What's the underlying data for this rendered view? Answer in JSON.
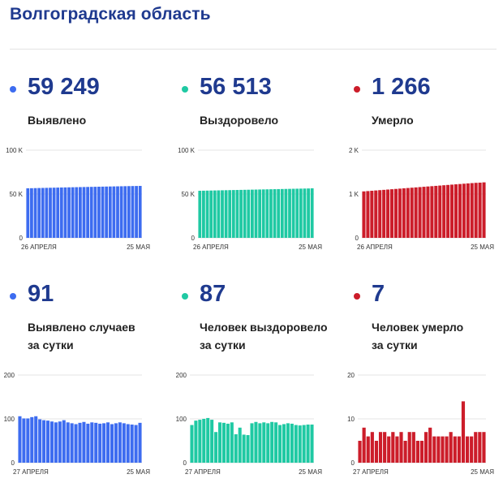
{
  "header": {
    "title": "Волгоградская область"
  },
  "colors": {
    "blue": "#3d6cf0",
    "teal": "#1fc9a3",
    "red": "#cc1d2a",
    "title": "#1f3a8f"
  },
  "stats": [
    {
      "value": "59 249",
      "label1": "Выявлено",
      "label2": ""
    },
    {
      "value": "56 513",
      "label1": "Выздоровело",
      "label2": ""
    },
    {
      "value": "1 266",
      "label1": "Умерло",
      "label2": ""
    },
    {
      "value": "91",
      "label1": "Выявлено случаев",
      "label2": "за сутки"
    },
    {
      "value": "87",
      "label1": "Человек выздоровело",
      "label2": "за сутки"
    },
    {
      "value": "7",
      "label1": "Человек умерло",
      "label2": "за сутки"
    }
  ],
  "chart_data": [
    {
      "type": "bar",
      "color": "#3d6cf0",
      "ylim": [
        0,
        100000
      ],
      "yticks": [
        {
          "v": 0,
          "t": "0"
        },
        {
          "v": 50000,
          "t": "50 K"
        },
        {
          "v": 100000,
          "t": "100 K"
        }
      ],
      "x_start_label": "26 АПРЕЛЯ",
      "x_end_label": "25 МАЯ",
      "values": [
        56527,
        56629,
        56733,
        56838,
        56938,
        57031,
        57128,
        57230,
        57331,
        57440,
        57533,
        57623,
        57719,
        57804,
        57891,
        57977,
        58068,
        58155,
        58248,
        58340,
        58423,
        58510,
        58593,
        58676,
        58754,
        58844,
        58929,
        59012,
        59090,
        59158,
        59249
      ]
    },
    {
      "type": "bar",
      "color": "#1fc9a3",
      "ylim": [
        0,
        100000
      ],
      "yticks": [
        {
          "v": 0,
          "t": "0"
        },
        {
          "v": 50000,
          "t": "50 K"
        },
        {
          "v": 100000,
          "t": "100 K"
        }
      ],
      "x_start_label": "26 АПРЕЛЯ",
      "x_end_label": "25 МАЯ",
      "values": [
        53700,
        53790,
        53880,
        53975,
        54070,
        54165,
        54255,
        54350,
        54440,
        54530,
        54620,
        54710,
        54800,
        54890,
        54980,
        55070,
        55160,
        55250,
        55340,
        55430,
        55520,
        55610,
        55700,
        55790,
        55880,
        55970,
        56060,
        56150,
        56240,
        56330,
        56513
      ]
    },
    {
      "type": "bar",
      "color": "#cc1d2a",
      "ylim": [
        0,
        2000
      ],
      "yticks": [
        {
          "v": 0,
          "t": "0"
        },
        {
          "v": 1000,
          "t": "1 K"
        },
        {
          "v": 2000,
          "t": "2 K"
        }
      ],
      "x_start_label": "26 АПРЕЛЯ",
      "x_end_label": "25 МАЯ",
      "values": [
        1060,
        1067,
        1074,
        1081,
        1088,
        1095,
        1102,
        1109,
        1116,
        1123,
        1130,
        1137,
        1144,
        1151,
        1158,
        1165,
        1172,
        1179,
        1186,
        1193,
        1200,
        1207,
        1214,
        1221,
        1228,
        1235,
        1242,
        1249,
        1255,
        1259,
        1266
      ]
    },
    {
      "type": "bar",
      "color": "#3d6cf0",
      "ylim": [
        0,
        200
      ],
      "yticks": [
        {
          "v": 0,
          "t": "0"
        },
        {
          "v": 100,
          "t": "100"
        },
        {
          "v": 200,
          "t": "200"
        }
      ],
      "x_start_label": "27 АПРЕЛЯ",
      "x_end_label": "25 МАЯ",
      "values": [
        106,
        101,
        101,
        104,
        106,
        99,
        97,
        96,
        94,
        92,
        94,
        97,
        92,
        90,
        88,
        91,
        93,
        89,
        92,
        91,
        89,
        90,
        92,
        88,
        90,
        92,
        90,
        88,
        87,
        86,
        91
      ]
    },
    {
      "type": "bar",
      "color": "#1fc9a3",
      "ylim": [
        0,
        200
      ],
      "yticks": [
        {
          "v": 0,
          "t": "0"
        },
        {
          "v": 100,
          "t": "100"
        },
        {
          "v": 200,
          "t": "200"
        }
      ],
      "x_start_label": "27 АПРЕЛЯ",
      "x_end_label": "25 МАЯ",
      "values": [
        86,
        96,
        98,
        100,
        102,
        98,
        70,
        92,
        91,
        89,
        92,
        65,
        80,
        64,
        63,
        90,
        93,
        90,
        92,
        90,
        93,
        92,
        86,
        88,
        90,
        89,
        86,
        85,
        86,
        87,
        87
      ]
    },
    {
      "type": "bar",
      "color": "#cc1d2a",
      "ylim": [
        0,
        20
      ],
      "yticks": [
        {
          "v": 0,
          "t": "0"
        },
        {
          "v": 10,
          "t": "10"
        },
        {
          "v": 20,
          "t": "20"
        }
      ],
      "x_start_label": "27 АПРЕЛЯ",
      "x_end_label": "25 МАЯ",
      "values": [
        5,
        8,
        6,
        7,
        5,
        7,
        7,
        6,
        7,
        6,
        7,
        5,
        7,
        7,
        5,
        5,
        7,
        8,
        6,
        6,
        6,
        6,
        7,
        6,
        6,
        14,
        6,
        6,
        7,
        7,
        7
      ]
    }
  ]
}
